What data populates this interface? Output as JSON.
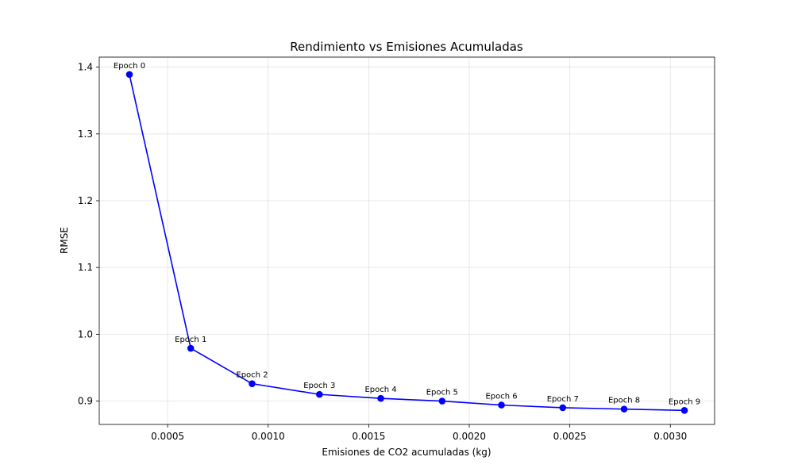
{
  "chart_data": {
    "type": "line",
    "title": "Rendimiento vs Emisiones Acumuladas",
    "xlabel": "Emisiones de CO2 acumuladas (kg)",
    "ylabel": "RMSE",
    "xlim": [
      0.00016,
      0.00322
    ],
    "ylim": [
      0.865,
      1.415
    ],
    "xticks": [
      0.0005,
      0.001,
      0.0015,
      0.002,
      0.0025,
      0.003
    ],
    "xtick_labels": [
      "0.0005",
      "0.0010",
      "0.0015",
      "0.0020",
      "0.0025",
      "0.0030"
    ],
    "yticks": [
      0.9,
      1.0,
      1.1,
      1.2,
      1.3,
      1.4
    ],
    "ytick_labels": [
      "0.9",
      "1.0",
      "1.1",
      "1.2",
      "1.3",
      "1.4"
    ],
    "grid": true,
    "series": [
      {
        "color": "#0000ff",
        "marker": "circle",
        "points": [
          {
            "x": 0.00031,
            "y": 1.389,
            "label": "Epoch 0"
          },
          {
            "x": 0.000615,
            "y": 0.979,
            "label": "Epoch 1"
          },
          {
            "x": 0.00092,
            "y": 0.926,
            "label": "Epoch 2"
          },
          {
            "x": 0.001255,
            "y": 0.91,
            "label": "Epoch 3"
          },
          {
            "x": 0.00156,
            "y": 0.904,
            "label": "Epoch 4"
          },
          {
            "x": 0.001865,
            "y": 0.9,
            "label": "Epoch 5"
          },
          {
            "x": 0.00216,
            "y": 0.894,
            "label": "Epoch 6"
          },
          {
            "x": 0.002465,
            "y": 0.89,
            "label": "Epoch 7"
          },
          {
            "x": 0.00277,
            "y": 0.888,
            "label": "Epoch 8"
          },
          {
            "x": 0.00307,
            "y": 0.886,
            "label": "Epoch 9"
          }
        ]
      }
    ]
  }
}
